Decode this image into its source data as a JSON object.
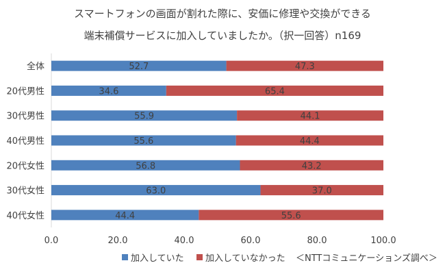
{
  "title_line1": "スマートフォンの画面が割れた際に、安価に修理や交換ができる",
  "title_line2": "端末補償サービスに加入していましたか。（択一回答）n169",
  "source": "＜NTTコミュニケーションズ調べ＞",
  "colors": {
    "series1": "#4f81bd",
    "series2": "#c0504d",
    "text": "#404040"
  },
  "chart_data": {
    "type": "bar",
    "orientation": "horizontal",
    "stacked": true,
    "categories": [
      "全体",
      "20代男性",
      "30代男性",
      "40代男性",
      "20代女性",
      "30代女性",
      "40代女性"
    ],
    "series": [
      {
        "name": "加入していた",
        "values": [
          52.7,
          34.6,
          55.9,
          55.6,
          56.8,
          63.0,
          44.4
        ]
      },
      {
        "name": "加入していなかった",
        "values": [
          47.3,
          65.4,
          44.1,
          44.4,
          43.2,
          37.0,
          55.6
        ]
      }
    ],
    "xlim": [
      0,
      100
    ],
    "xticks": [
      "0.0",
      "20.0",
      "40.0",
      "60.0",
      "80.0",
      "100.0"
    ],
    "grid": false,
    "legend_position": "bottom"
  }
}
